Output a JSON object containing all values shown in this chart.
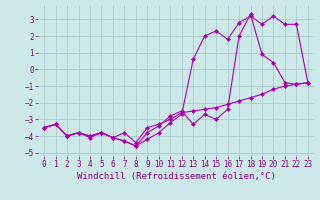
{
  "bg_color": "#cce8e8",
  "grid_color": "#aacccc",
  "line_color": "#aa00aa",
  "marker": "D",
  "markersize": 2.5,
  "linewidth": 0.8,
  "xlabel": "Windchill (Refroidissement éolien,°C)",
  "xlabel_fontsize": 6.5,
  "tick_fontsize": 5.5,
  "xlim": [
    -0.5,
    23.5
  ],
  "ylim": [
    -5.2,
    3.8
  ],
  "yticks": [
    -5,
    -4,
    -3,
    -2,
    -1,
    0,
    1,
    2,
    3
  ],
  "xticks": [
    0,
    1,
    2,
    3,
    4,
    5,
    6,
    7,
    8,
    9,
    10,
    11,
    12,
    13,
    14,
    15,
    16,
    17,
    18,
    19,
    20,
    21,
    22,
    23
  ],
  "series1_x": [
    0,
    1,
    2,
    3,
    4,
    5,
    6,
    7,
    8,
    9,
    10,
    11,
    12,
    13,
    14,
    15,
    16,
    17,
    18,
    19,
    20,
    21,
    22,
    23
  ],
  "series1_y": [
    -3.5,
    -3.3,
    -4.0,
    -3.8,
    -4.0,
    -3.8,
    -4.1,
    -3.8,
    -4.4,
    -3.5,
    -3.3,
    -3.0,
    -2.6,
    -2.5,
    -2.4,
    -2.3,
    -2.1,
    -1.9,
    -1.7,
    -1.5,
    -1.2,
    -1.0,
    -0.9,
    -0.8
  ],
  "series2_x": [
    0,
    1,
    2,
    3,
    4,
    5,
    6,
    7,
    8,
    9,
    10,
    11,
    12,
    13,
    14,
    15,
    16,
    17,
    18,
    19,
    20,
    21,
    22,
    23
  ],
  "series2_y": [
    -3.5,
    -3.3,
    -4.0,
    -3.8,
    -4.0,
    -3.8,
    -4.1,
    -4.3,
    -4.6,
    -3.8,
    -3.4,
    -2.8,
    -2.5,
    -3.3,
    -2.7,
    -3.0,
    -2.4,
    2.0,
    3.3,
    0.9,
    0.4,
    -0.8,
    -0.9,
    -0.8
  ],
  "series3_x": [
    0,
    1,
    2,
    3,
    4,
    5,
    6,
    7,
    8,
    9,
    10,
    11,
    12,
    13,
    14,
    15,
    16,
    17,
    18,
    19,
    20,
    21,
    22,
    23
  ],
  "series3_y": [
    -3.5,
    -3.3,
    -4.0,
    -3.8,
    -4.1,
    -3.8,
    -4.1,
    -4.3,
    -4.6,
    -4.2,
    -3.8,
    -3.2,
    -2.7,
    0.6,
    2.0,
    2.3,
    1.8,
    2.8,
    3.2,
    2.7,
    3.2,
    2.7,
    2.7,
    -0.8
  ]
}
